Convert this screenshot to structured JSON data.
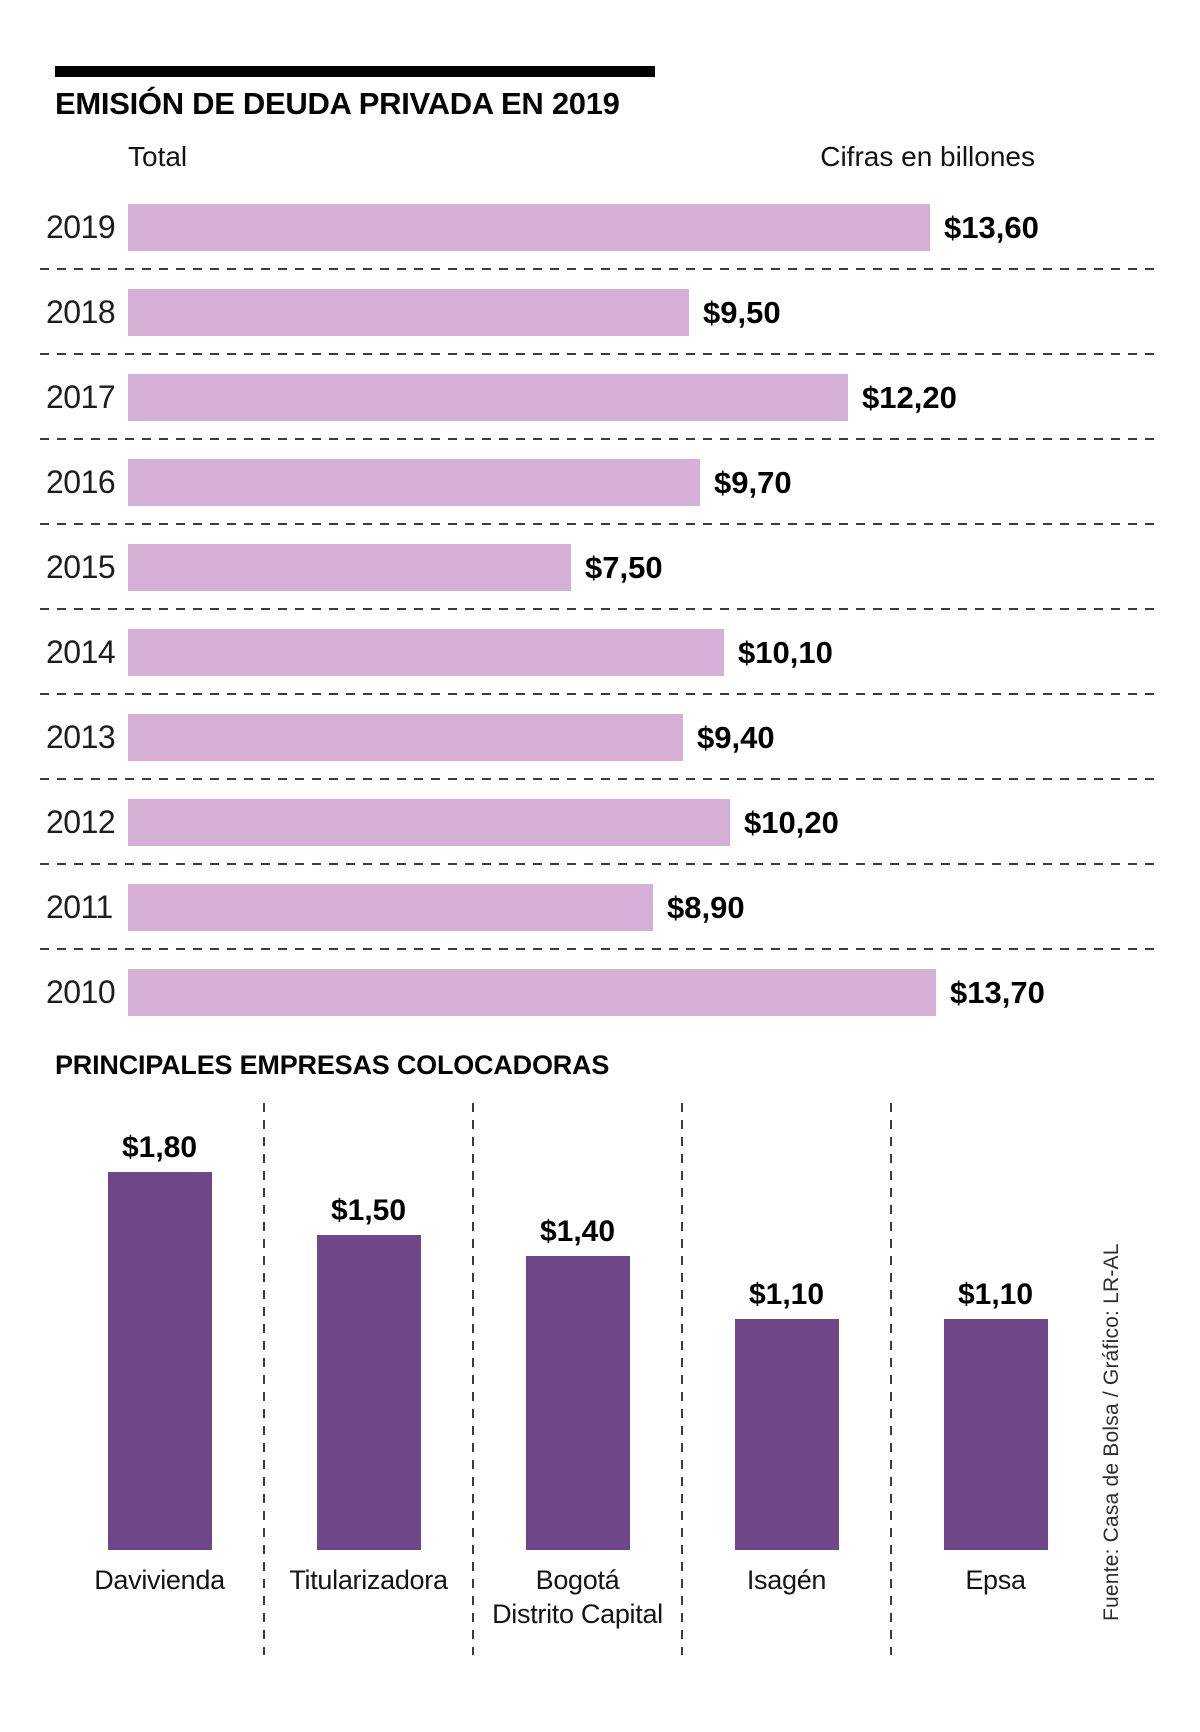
{
  "header": {
    "title": "EMISIÓN DE DEUDA PRIVADA EN 2019",
    "subtitle_left": "Total",
    "subtitle_right": "Cifras en billones"
  },
  "section2_title": "PRINCIPALES EMPRESAS COLOCADORAS",
  "source": "Fuente: Casa de Bolsa / Gráfico: LR-AL",
  "colors": {
    "light_purple_bar": "#d6afd6",
    "dark_purple_bar": "#6f4788",
    "dashed_line": "#3c3c3c",
    "black_rule": "#000000"
  },
  "chart_data": [
    {
      "type": "bar",
      "orientation": "horizontal",
      "title": "EMISIÓN DE DEUDA PRIVADA EN 2019",
      "subtitle": "Total",
      "units_note": "Cifras en billones",
      "categories": [
        "2019",
        "2018",
        "2017",
        "2016",
        "2015",
        "2014",
        "2013",
        "2012",
        "2011",
        "2010"
      ],
      "values": [
        13.6,
        9.5,
        12.2,
        9.7,
        7.5,
        10.1,
        9.4,
        10.2,
        8.9,
        13.7
      ],
      "value_labels": [
        "$13,60",
        "$9,50",
        "$12,20",
        "$9,70",
        "$7,50",
        "$10,10",
        "$9,40",
        "$10,20",
        "$8,90",
        "$13,70"
      ],
      "bar_color": "#d6afd6",
      "xlim": [
        0,
        14
      ],
      "grid": "dashed-row-separators",
      "legend": "none"
    },
    {
      "type": "bar",
      "orientation": "vertical",
      "title": "PRINCIPALES EMPRESAS COLOCADORAS",
      "categories": [
        "Davivienda",
        "Titularizadora",
        "Bogotá Distrito Capital",
        "Isagén",
        "Epsa"
      ],
      "display_labels": [
        "Davivienda",
        "Titularizadora",
        "Bogotá\nDistrito Capital",
        "Isagén",
        "Epsa"
      ],
      "values": [
        1.8,
        1.5,
        1.4,
        1.1,
        1.1
      ],
      "value_labels": [
        "$1,80",
        "$1,50",
        "$1,40",
        "$1,10",
        "$1,10"
      ],
      "bar_color": "#6f4788",
      "ylim": [
        0,
        2
      ],
      "grid": "dashed-column-separators",
      "legend": "none"
    }
  ]
}
